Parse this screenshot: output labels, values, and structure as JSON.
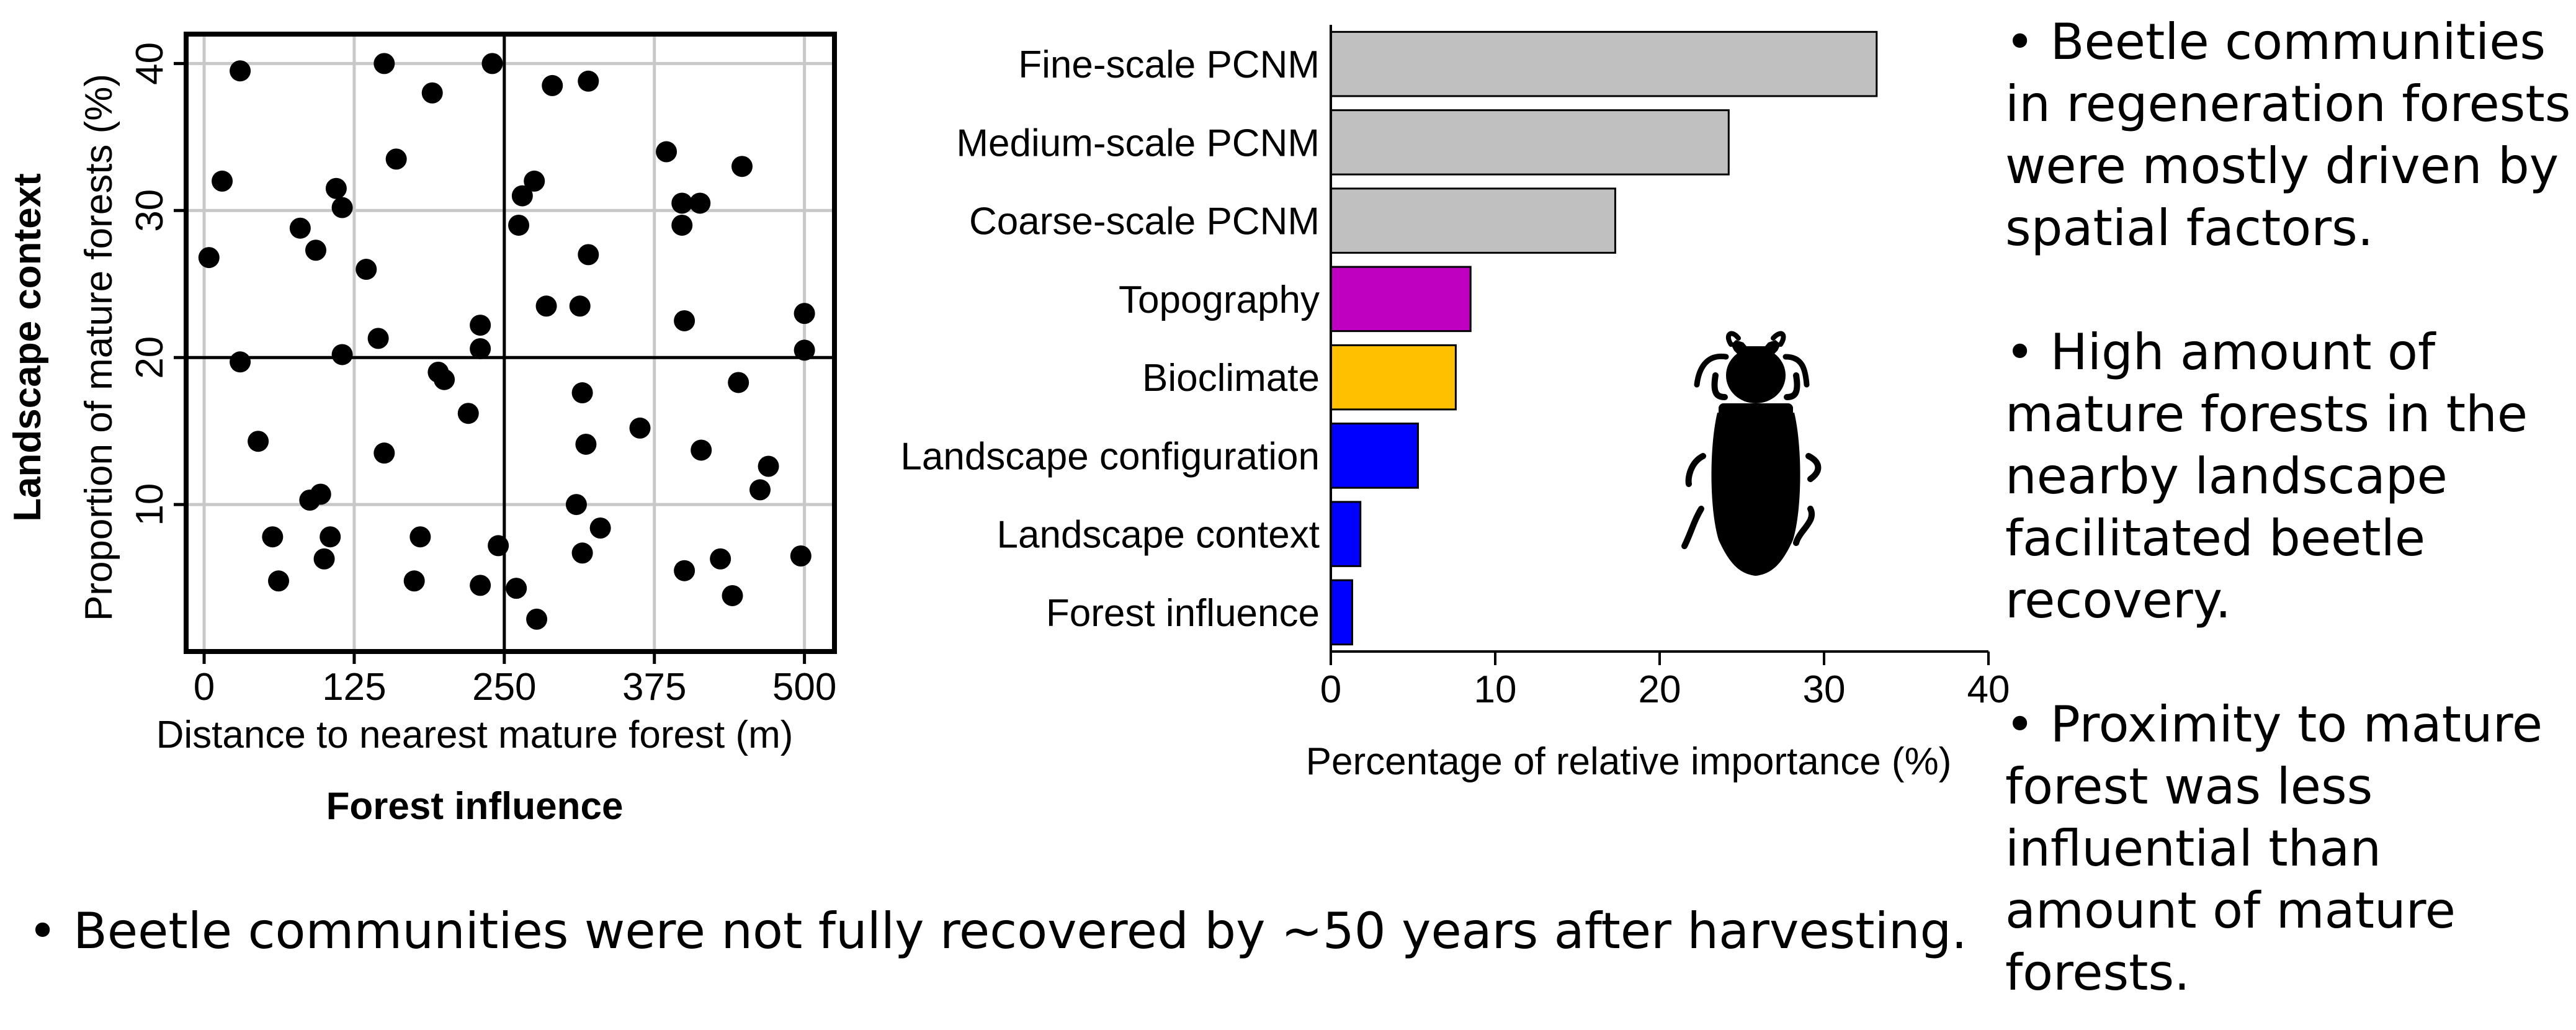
{
  "chart_data": [
    {
      "type": "scatter",
      "title": "",
      "xlabel": "Distance to nearest mature forest (m)",
      "ylabel": "Proportion of mature forests (%)",
      "xtitle": "Forest influence",
      "ytitle": "Landscape context",
      "xlim": [
        -15,
        525
      ],
      "ylim": [
        0,
        42
      ],
      "xticks": [
        0,
        125,
        250,
        375,
        500
      ],
      "yticks": [
        10,
        20,
        30,
        40
      ],
      "grid": true,
      "reference_lines": {
        "x": 250,
        "y": 20
      },
      "points": [
        [
          30,
          39.5
        ],
        [
          150,
          40
        ],
        [
          240,
          40
        ],
        [
          190,
          38
        ],
        [
          290,
          38.5
        ],
        [
          320,
          38.8
        ],
        [
          15,
          32
        ],
        [
          110,
          31.5
        ],
        [
          160,
          33.5
        ],
        [
          115,
          30.2
        ],
        [
          265,
          31
        ],
        [
          275,
          32
        ],
        [
          385,
          34
        ],
        [
          448,
          33
        ],
        [
          4,
          26.8
        ],
        [
          80,
          28.8
        ],
        [
          93,
          27.3
        ],
        [
          135,
          26
        ],
        [
          262,
          29
        ],
        [
          320,
          27
        ],
        [
          398,
          30.5
        ],
        [
          413,
          30.5
        ],
        [
          398,
          29
        ],
        [
          145,
          21.3
        ],
        [
          230,
          22.2
        ],
        [
          285,
          23.5
        ],
        [
          313,
          23.5
        ],
        [
          400,
          22.5
        ],
        [
          500,
          23
        ],
        [
          30,
          19.7
        ],
        [
          115,
          20.2
        ],
        [
          230,
          20.6
        ],
        [
          500,
          20.5
        ],
        [
          195,
          19
        ],
        [
          200,
          18.5
        ],
        [
          220,
          16.2
        ],
        [
          315,
          17.6
        ],
        [
          445,
          18.3
        ],
        [
          45,
          14.3
        ],
        [
          150,
          13.5
        ],
        [
          318,
          14.1
        ],
        [
          363,
          15.2
        ],
        [
          414,
          13.7
        ],
        [
          470,
          12.6
        ],
        [
          463,
          11
        ],
        [
          88,
          10.3
        ],
        [
          97,
          10.7
        ],
        [
          310,
          10
        ],
        [
          57,
          7.8
        ],
        [
          105,
          7.8
        ],
        [
          180,
          7.8
        ],
        [
          245,
          7.2
        ],
        [
          330,
          8.4
        ],
        [
          62,
          4.8
        ],
        [
          100,
          6.3
        ],
        [
          175,
          4.8
        ],
        [
          230,
          4.5
        ],
        [
          260,
          4.3
        ],
        [
          315,
          6.7
        ],
        [
          400,
          5.5
        ],
        [
          430,
          6.3
        ],
        [
          440,
          3.8
        ],
        [
          497,
          6.5
        ],
        [
          277,
          2.2
        ]
      ]
    },
    {
      "type": "bar",
      "orientation": "horizontal",
      "title": "",
      "xlabel": "Percentage of relative importance (%)",
      "xlim": [
        0,
        40
      ],
      "xticks": [
        0,
        10,
        20,
        30,
        40
      ],
      "categories": [
        "Fine-scale PCNM",
        "Medium-scale PCNM",
        "Coarse-scale PCNM",
        "Topography",
        "Bioclimate",
        "Landscape configuration",
        "Landscape context",
        "Forest influence"
      ],
      "values": [
        33.2,
        24.2,
        17.3,
        8.5,
        7.6,
        5.3,
        1.8,
        1.3
      ],
      "colors": [
        "#c0c0c0",
        "#c0c0c0",
        "#c0c0c0",
        "#c000c0",
        "#ffc000",
        "#0000ff",
        "#0000ff",
        "#0000ff"
      ],
      "icon": "beetle-silhouette-icon"
    }
  ],
  "summary": {
    "right_bullets": [
      [
        "Beetle communities",
        "in regeneration forests",
        "were mostly driven by",
        "spatial factors."
      ],
      [
        "High amount of",
        "mature forests in the",
        "nearby landscape",
        "facilitated beetle",
        "recovery."
      ],
      [
        "Proximity to mature",
        "forest was less",
        "influential than",
        "amount of mature",
        "forests."
      ]
    ],
    "bottom_bullet": "Beetle communities were not fully recovered by ~50 years after harvesting."
  }
}
